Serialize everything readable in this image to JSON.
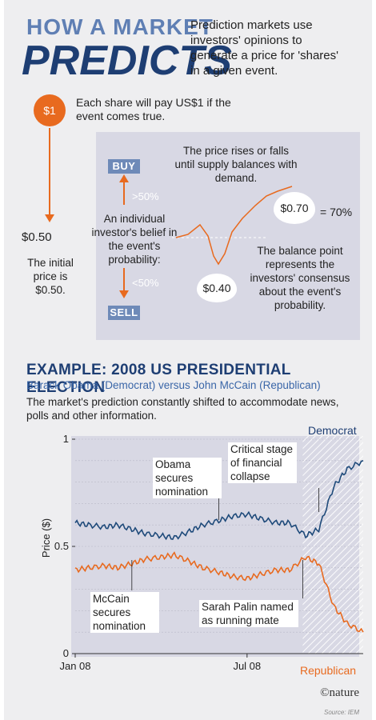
{
  "header": {
    "title_line1": "HOW A MARKET",
    "title_line2": "PREDICTS",
    "intro": "Prediction markets use investors' opinions to generate a price for 'shares' in a given event."
  },
  "explainer": {
    "share_price": "$1",
    "share_text": "Each share will pay US$1 if the event comes true.",
    "initial_price": "$0.50",
    "initial_text": "The initial price is $0.50.",
    "buy_label": "BUY",
    "sell_label": "SELL",
    "above": ">50%",
    "below": "<50%",
    "belief_text": "An individual investor's belief in the event's probability:",
    "supply_text": "The price rises or falls until supply balances with demand.",
    "high_price": "$0.70",
    "high_pct": "= 70%",
    "low_price": "$0.40",
    "balance_text": "The balance point represents the investors' consensus about the event's probability."
  },
  "example": {
    "title": "EXAMPLE: 2008 US PRESIDENTIAL ELECTION",
    "subtitle": "Barack Obama (Democrat) versus John McCain (Republican)",
    "description": "The market's prediction constantly shifted to accommodate news, polls and other information."
  },
  "footer": {
    "credit": "©nature",
    "source": "Source: IEM"
  },
  "colors": {
    "democrat": "#1e4a7a",
    "republican": "#e86a1f",
    "panel": "#d8d8e4",
    "title_dark": "#1e3e73"
  },
  "chart_data": {
    "type": "line",
    "title": "",
    "xlabel": "",
    "ylabel": "Price ($)",
    "ylim": [
      0,
      1
    ],
    "yticks": [
      "0",
      "0.5",
      "1"
    ],
    "xticks": [
      "Jan 08",
      "Jul 08"
    ],
    "legend": "top-right / bottom-right labels",
    "grid": true,
    "x": [
      "2008-01-01",
      "2008-01-15",
      "2008-02-01",
      "2008-02-15",
      "2008-03-01",
      "2008-03-15",
      "2008-04-01",
      "2008-04-15",
      "2008-05-01",
      "2008-05-15",
      "2008-06-01",
      "2008-06-15",
      "2008-07-01",
      "2008-07-15",
      "2008-08-01",
      "2008-08-15",
      "2008-09-01",
      "2008-09-15",
      "2008-10-01",
      "2008-10-15",
      "2008-11-01"
    ],
    "series": [
      {
        "name": "Democrat",
        "values": [
          0.61,
          0.6,
          0.59,
          0.6,
          0.58,
          0.56,
          0.55,
          0.54,
          0.57,
          0.6,
          0.62,
          0.64,
          0.65,
          0.63,
          0.61,
          0.61,
          0.55,
          0.58,
          0.78,
          0.86,
          0.9
        ]
      },
      {
        "name": "Republican",
        "values": [
          0.39,
          0.4,
          0.41,
          0.4,
          0.42,
          0.44,
          0.45,
          0.46,
          0.43,
          0.4,
          0.38,
          0.36,
          0.35,
          0.37,
          0.39,
          0.39,
          0.45,
          0.42,
          0.22,
          0.14,
          0.1
        ]
      }
    ],
    "annotations": [
      {
        "text": "Obama secures nomination",
        "x": "2008-06-01"
      },
      {
        "text": "Critical stage of financial collapse",
        "x": "2008-09-15"
      },
      {
        "text": "McCain secures nomination",
        "x": "2008-03-01"
      },
      {
        "text": "Sarah Palin named as running mate",
        "x": "2008-08-29"
      }
    ],
    "series_labels": {
      "democrat": "Democrat",
      "republican": "Republican"
    }
  }
}
